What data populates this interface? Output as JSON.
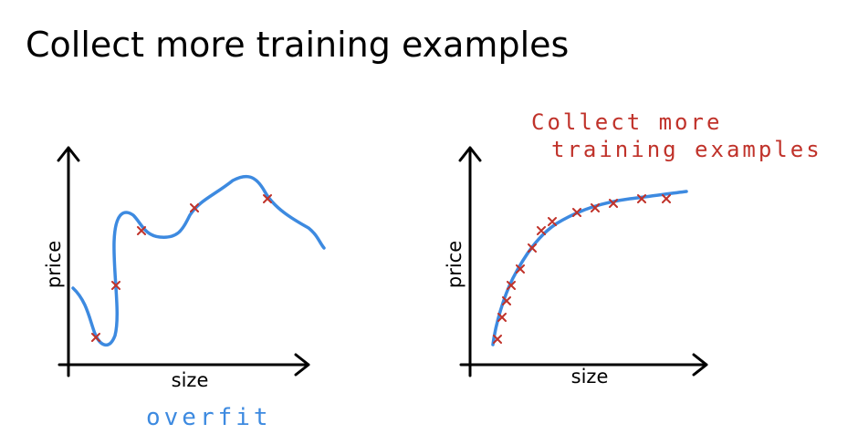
{
  "title": "Collect more training examples",
  "left_plot": {
    "y_label": "price",
    "x_label": "size",
    "caption": "overfit"
  },
  "right_plot": {
    "y_label": "price",
    "x_label": "size",
    "annotation": [
      "Collect more",
      "training examples"
    ]
  }
}
